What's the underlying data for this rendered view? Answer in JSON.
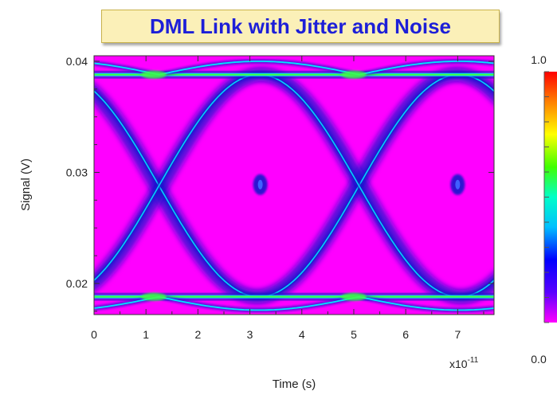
{
  "chart_data": {
    "type": "heatmap",
    "title": "DML Link with Jitter and Noise",
    "xlabel": "Time (s)",
    "ylabel": "Signal (V)",
    "x_exponent_label": "x10",
    "x_exponent_power": "-11",
    "xlim": [
      0,
      7.7
    ],
    "ylim": [
      0.0172,
      0.0405
    ],
    "x_ticks": [
      "0",
      "1",
      "2",
      "3",
      "4",
      "5",
      "6",
      "7"
    ],
    "y_ticks": [
      "0.02",
      "0.03",
      "0.04"
    ],
    "x_tick_values": [
      0,
      1,
      2,
      3,
      4,
      5,
      6,
      7
    ],
    "y_tick_values": [
      0.02,
      0.03,
      0.04
    ],
    "colorbar": {
      "min_label": "0.0",
      "max_label": "1.0",
      "min": 0.0,
      "max": 1.0
    },
    "eye": {
      "levels_V": [
        0.0188,
        0.0388
      ],
      "crossings_s": [
        1.25,
        5.1
      ],
      "eye_centers_s": [
        3.2,
        7.0
      ],
      "eye_center_level_V": 0.0289,
      "outer_levels_V": [
        0.0176,
        0.04
      ]
    },
    "colors": {
      "background": "#ff00ff",
      "trace_dark": "#1a1acc",
      "trace_light": "#00e5ff",
      "trace_peak": "#40ff40"
    }
  }
}
